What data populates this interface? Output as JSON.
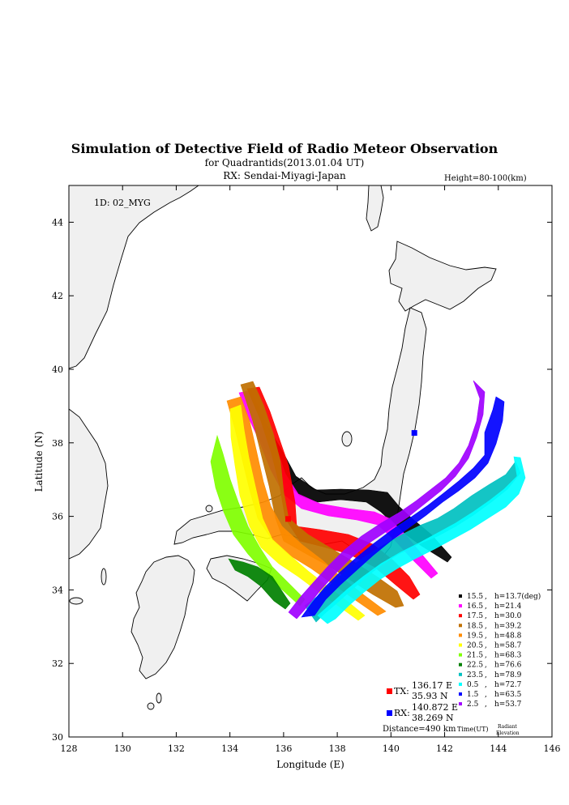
{
  "title": "Simulation of Detective Field of Radio Meteor Observation",
  "subtitle": "for Quadrantids(2013.01.04 UT)",
  "rx_line": "RX: Sendai-Miyagi-Japan",
  "height_label": "Height=80-100(km)",
  "id_label": "1D: 02_MYG",
  "xlabel": "Longitude (E)",
  "ylabel": "Latitude (N)",
  "x_ticks": [
    "128",
    "130",
    "132",
    "134",
    "136",
    "138",
    "140",
    "142",
    "144",
    "146"
  ],
  "y_ticks": [
    "30",
    "32",
    "34",
    "36",
    "38",
    "40",
    "42",
    "44"
  ],
  "legend": [
    {
      "time": "15.5",
      "elev": "h=13.7(deg)",
      "color": "#000000"
    },
    {
      "time": "16.5",
      "elev": "h=21.4",
      "color": "#ff00ff"
    },
    {
      "time": "17.5",
      "elev": "h=30.0",
      "color": "#ff0000"
    },
    {
      "time": "18.5",
      "elev": "h=39.2",
      "color": "#c07000"
    },
    {
      "time": "19.5",
      "elev": "h=48.8",
      "color": "#ff8c00"
    },
    {
      "time": "20.5",
      "elev": "h=58.7",
      "color": "#ffff00"
    },
    {
      "time": "21.5",
      "elev": "h=68.3",
      "color": "#80ff00"
    },
    {
      "time": "22.5",
      "elev": "h=76.6",
      "color": "#008000"
    },
    {
      "time": "23.5",
      "elev": "h=78.9",
      "color": "#00c0c0"
    },
    {
      "time": "0.5",
      "elev": "h=72.7",
      "color": "#00ffff"
    },
    {
      "time": "1.5",
      "elev": "h=63.5",
      "color": "#0000ff"
    },
    {
      "time": "2.5",
      "elev": "h=53.7",
      "color": "#a000ff"
    }
  ],
  "legend_time_label": "Time(UT)",
  "legend_elev_label_1": "Radiant",
  "legend_elev_label_2": "Elevation",
  "tx": {
    "label": "TX:",
    "lon": "136.17 E",
    "lat": "35.93 N",
    "color": "#ff0000"
  },
  "rx": {
    "label": "RX:",
    "lon": "140.872 E",
    "lat": "38.269 N",
    "color": "#0000ff"
  },
  "distance": "Distance=490 km",
  "map_data": {
    "lon_range": [
      128,
      146
    ],
    "lat_range": [
      30,
      45
    ],
    "land_color": "#f0f0f0",
    "tx_point": [
      136.17,
      35.93
    ],
    "rx_point": [
      140.872,
      38.269
    ]
  }
}
